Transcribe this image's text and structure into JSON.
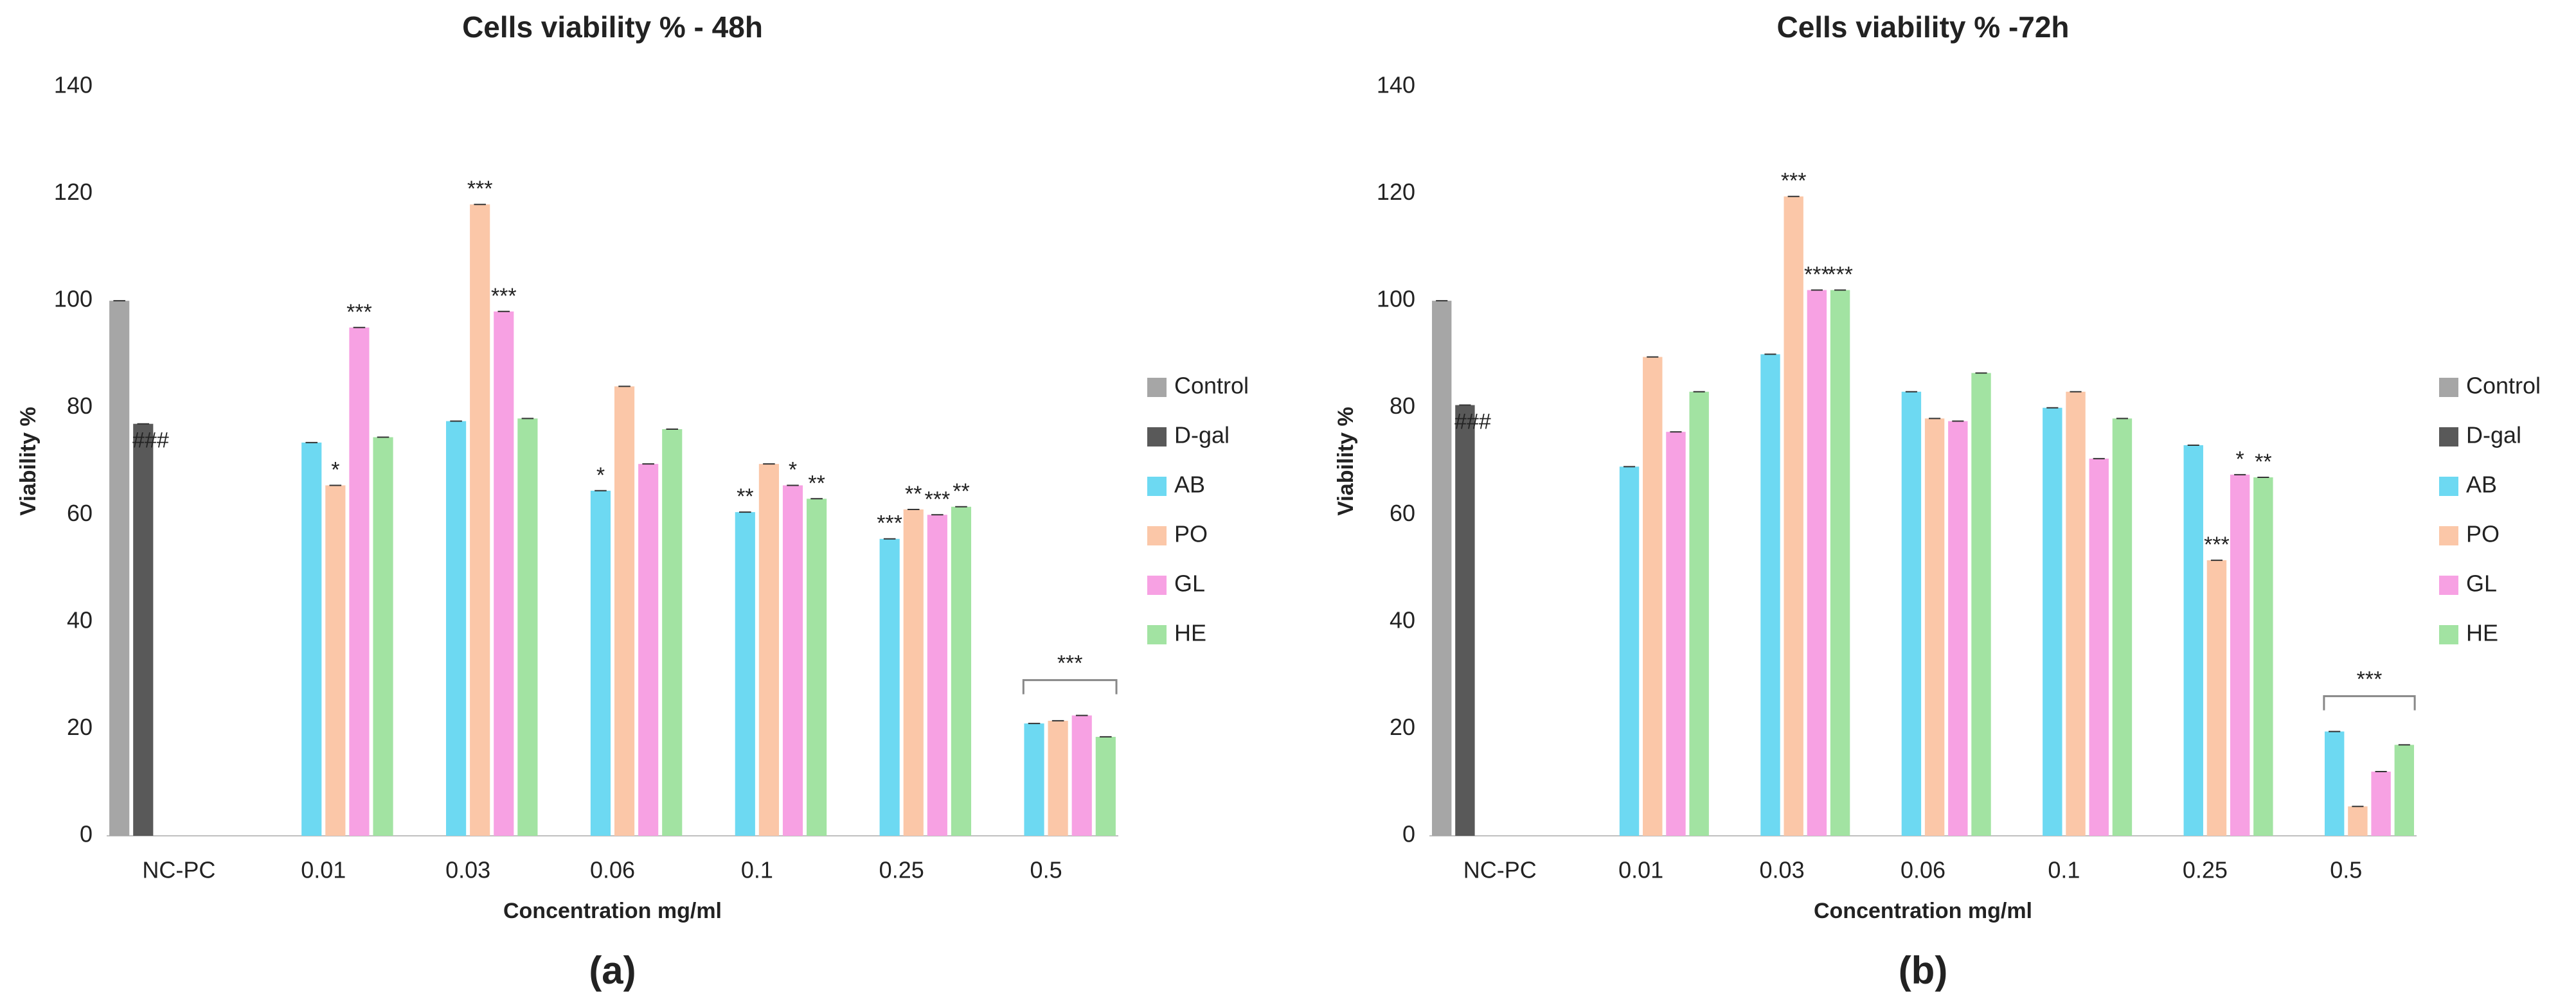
{
  "chart_data": [
    {
      "type": "bar",
      "title": "Cells viability % - 48h",
      "x_label": "Concentration mg/ml",
      "y_label": "Viability %",
      "panel_label": "(a)",
      "categories": [
        "NC-PC",
        "0.01",
        "0.03",
        "0.06",
        "0.1",
        "0.25",
        "0.5"
      ],
      "ylim": [
        0,
        140
      ],
      "yticks": [
        0,
        20,
        40,
        60,
        80,
        100,
        120,
        140
      ],
      "grid": false,
      "legend": "right",
      "series": [
        {
          "name": "Control",
          "color": "#a6a6a6",
          "values": [
            100,
            null,
            null,
            null,
            null,
            null,
            null
          ],
          "markers": [
            null,
            null,
            null,
            null,
            null,
            null,
            null
          ]
        },
        {
          "name": "D-gal",
          "color": "#595959",
          "values": [
            77,
            null,
            null,
            null,
            null,
            null,
            null
          ],
          "markers": [
            "###",
            null,
            null,
            null,
            null,
            null,
            null
          ]
        },
        {
          "name": "AB",
          "color": "#6dd9f2",
          "values": [
            null,
            73.5,
            77.5,
            64.5,
            60.5,
            55.5,
            21
          ],
          "markers": [
            null,
            null,
            null,
            "*",
            "**",
            "***",
            null
          ]
        },
        {
          "name": "PO",
          "color": "#fbc7a8",
          "values": [
            null,
            65.5,
            118,
            84,
            69.5,
            61,
            21.5
          ],
          "markers": [
            null,
            "*",
            "***",
            null,
            null,
            "**",
            null
          ]
        },
        {
          "name": "GL",
          "color": "#f7a1e3",
          "values": [
            null,
            95,
            98,
            69.5,
            65.5,
            60,
            22.5
          ],
          "markers": [
            null,
            "***",
            "***",
            null,
            "*",
            "***",
            null
          ]
        },
        {
          "name": "HE",
          "color": "#a2e3a2",
          "values": [
            null,
            74.5,
            78,
            76,
            63,
            61.5,
            18.5
          ],
          "markers": [
            null,
            null,
            null,
            null,
            "**",
            "**",
            null
          ]
        }
      ],
      "bracket": {
        "category": "0.5",
        "text": "***"
      }
    },
    {
      "type": "bar",
      "title": "Cells viability % -72h",
      "x_label": "Concentration mg/ml",
      "y_label": "Viability %",
      "panel_label": "(b)",
      "categories": [
        "NC-PC",
        "0.01",
        "0.03",
        "0.06",
        "0.1",
        "0.25",
        "0.5"
      ],
      "ylim": [
        0,
        140
      ],
      "yticks": [
        0,
        20,
        40,
        60,
        80,
        100,
        120,
        140
      ],
      "grid": false,
      "legend": "right",
      "series": [
        {
          "name": "Control",
          "color": "#a6a6a6",
          "values": [
            100,
            null,
            null,
            null,
            null,
            null,
            null
          ],
          "markers": [
            null,
            null,
            null,
            null,
            null,
            null,
            null
          ]
        },
        {
          "name": "D-gal",
          "color": "#595959",
          "values": [
            80.5,
            null,
            null,
            null,
            null,
            null,
            null
          ],
          "markers": [
            "###",
            null,
            null,
            null,
            null,
            null,
            null
          ]
        },
        {
          "name": "AB",
          "color": "#6dd9f2",
          "values": [
            null,
            69,
            90,
            83,
            80,
            73,
            19.5
          ],
          "markers": [
            null,
            null,
            null,
            null,
            null,
            null,
            null
          ]
        },
        {
          "name": "PO",
          "color": "#fbc7a8",
          "values": [
            null,
            89.5,
            119.5,
            78,
            83,
            51.5,
            5.5
          ],
          "markers": [
            null,
            null,
            "***",
            null,
            null,
            "***",
            null
          ]
        },
        {
          "name": "GL",
          "color": "#f7a1e3",
          "values": [
            null,
            75.5,
            102,
            77.5,
            70.5,
            67.5,
            12
          ],
          "markers": [
            null,
            null,
            "***",
            null,
            null,
            "*",
            null
          ]
        },
        {
          "name": "HE",
          "color": "#a2e3a2",
          "values": [
            null,
            83,
            102,
            86.5,
            78,
            67,
            17
          ],
          "markers": [
            null,
            null,
            "***",
            null,
            null,
            "**",
            null
          ]
        }
      ],
      "bracket": {
        "category": "0.5",
        "text": "***"
      }
    }
  ]
}
